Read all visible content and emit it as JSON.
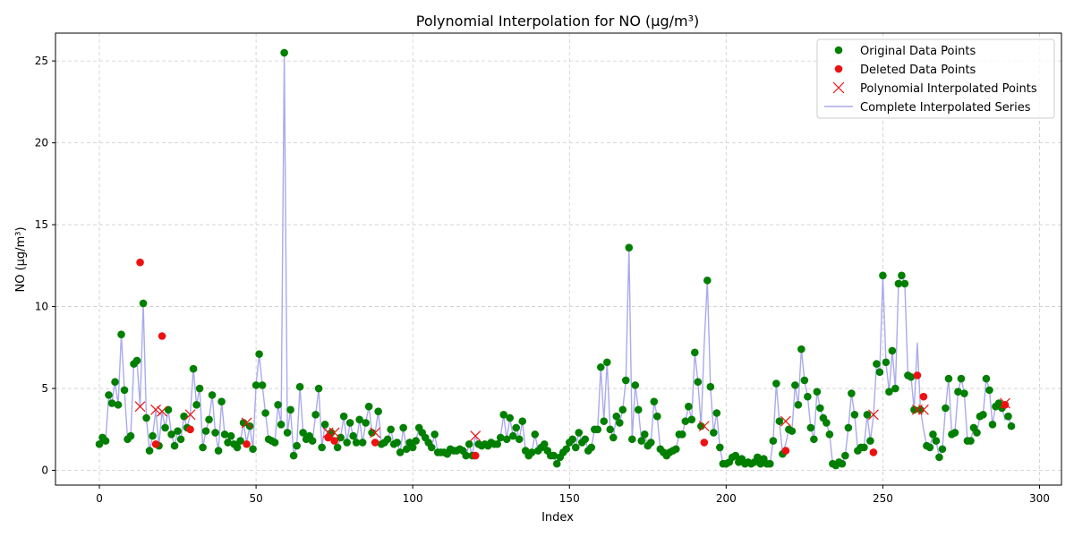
{
  "chart_data": {
    "type": "scatter",
    "title": "Polynomial Interpolation for NO (µg/m³)",
    "xlabel": "Index",
    "ylabel": "NO (µg/m³)",
    "xlim": [
      -14,
      307
    ],
    "ylim": [
      -0.9,
      26.7
    ],
    "xticks": [
      0,
      50,
      100,
      150,
      200,
      250,
      300
    ],
    "yticks": [
      0,
      5,
      10,
      15,
      20,
      25
    ],
    "grid": true,
    "legend_position": "top-right",
    "legend": [
      {
        "label": "Original Data Points",
        "marker": "dot",
        "color": "#007f00"
      },
      {
        "label": "Deleted Data Points",
        "marker": "dot",
        "color": "#ee1111"
      },
      {
        "label": "Polynomial Interpolated Points",
        "marker": "x",
        "color": "#ee1111"
      },
      {
        "label": "Complete Interpolated Series",
        "marker": "line",
        "color": "#aaaaee"
      }
    ],
    "series": [
      {
        "name": "Complete Interpolated Series",
        "y": [
          1.6,
          2.0,
          1.8,
          4.6,
          4.1,
          5.4,
          4.0,
          8.3,
          4.9,
          1.9,
          2.1,
          6.5,
          6.7,
          3.9,
          10.2,
          3.2,
          1.2,
          2.1,
          3.7,
          1.5,
          3.6,
          2.6,
          3.7,
          2.2,
          1.5,
          2.4,
          1.9,
          3.3,
          2.6,
          3.4,
          6.2,
          4.0,
          5.0,
          1.4,
          2.4,
          3.1,
          4.6,
          2.3,
          1.2,
          4.2,
          2.2,
          1.7,
          2.1,
          1.6,
          1.4,
          1.8,
          2.9,
          1.7,
          2.7,
          1.3,
          5.2,
          7.1,
          5.2,
          3.5,
          1.9,
          1.8,
          1.7,
          4.0,
          2.8,
          25.5,
          2.3,
          3.7,
          0.9,
          1.5,
          5.1,
          2.3,
          1.9,
          2.1,
          1.8,
          3.4,
          5.0,
          1.4,
          2.8,
          2.1,
          2.3,
          1.8,
          1.4,
          2.0,
          3.3,
          1.7,
          2.9,
          2.1,
          1.7,
          3.1,
          1.7,
          2.9,
          3.9,
          2.3,
          2.3,
          3.6,
          1.6,
          1.7,
          1.9,
          2.5,
          1.6,
          1.7,
          1.1,
          2.6,
          1.3,
          1.7,
          1.4,
          1.8,
          2.6,
          2.3,
          2.0,
          1.7,
          1.4,
          2.2,
          1.1,
          1.1,
          1.1,
          1.0,
          1.3,
          1.2,
          1.2,
          1.3,
          1.2,
          0.9,
          1.6,
          0.9,
          2.1,
          1.6,
          1.5,
          1.6,
          1.5,
          1.7,
          1.6,
          1.6,
          2.0,
          3.4,
          1.9,
          3.2,
          2.1,
          2.6,
          1.9,
          3.0,
          1.2,
          0.9,
          1.1,
          2.2,
          1.2,
          1.4,
          1.6,
          1.2,
          0.9,
          0.9,
          0.4,
          0.8,
          1.1,
          1.3,
          1.7,
          1.9,
          1.4,
          2.3,
          1.7,
          1.9,
          1.2,
          1.4,
          2.5,
          2.5,
          6.3,
          3.0,
          6.6,
          2.5,
          2.0,
          3.3,
          2.9,
          3.7,
          5.5,
          13.6,
          1.9,
          5.2,
          3.7,
          1.8,
          2.2,
          1.5,
          1.7,
          4.2,
          3.3,
          1.3,
          1.1,
          0.9,
          1.1,
          1.2,
          1.3,
          2.2,
          2.2,
          3.0,
          3.9,
          3.1,
          7.2,
          5.4,
          2.7,
          7.7,
          11.6,
          5.1,
          2.3,
          3.5,
          1.4,
          0.4,
          0.4,
          0.5,
          0.8,
          0.9,
          0.5,
          0.7,
          0.4,
          0.5,
          0.4,
          0.5,
          0.8,
          0.4,
          0.7,
          0.4,
          0.4,
          1.8,
          5.3,
          3.0,
          1.0,
          1.6,
          2.5,
          2.4,
          5.2,
          4.0,
          7.4,
          5.5,
          4.5,
          2.6,
          1.9,
          4.8,
          3.8,
          3.2,
          2.9,
          2.2,
          0.4,
          0.3,
          0.5,
          0.4,
          0.9,
          2.6,
          4.7,
          3.4,
          1.2,
          1.4,
          1.4,
          3.4,
          1.8,
          3.3,
          6.5,
          6.0,
          11.9,
          6.6,
          4.8,
          7.3,
          5.0,
          11.4,
          11.9,
          11.4,
          5.8,
          5.7,
          3.7,
          7.8,
          3.7,
          2.5,
          1.5,
          1.4,
          2.2,
          1.8,
          0.8,
          1.3,
          3.8,
          5.6,
          2.2,
          2.3,
          4.8,
          5.6,
          4.7,
          1.8,
          1.8,
          2.6,
          2.3,
          3.3,
          3.4,
          5.6,
          4.9,
          2.8,
          3.9,
          4.1,
          3.8,
          3.1,
          3.3,
          2.7
        ]
      },
      {
        "name": "Polynomial Interpolated Points",
        "points": [
          [
            13,
            3.9
          ],
          [
            18,
            3.7
          ],
          [
            20,
            3.6
          ],
          [
            29,
            3.4
          ],
          [
            47,
            2.9
          ],
          [
            73,
            2.3
          ],
          [
            75,
            2.3
          ],
          [
            88,
            2.3
          ],
          [
            120,
            2.1
          ],
          [
            193,
            2.7
          ],
          [
            219,
            3.0
          ],
          [
            247,
            3.4
          ],
          [
            261,
            3.7
          ],
          [
            263,
            3.7
          ],
          [
            289,
            4.1
          ]
        ]
      },
      {
        "name": "Deleted Data Points",
        "points": [
          [
            13,
            12.7
          ],
          [
            18,
            1.6
          ],
          [
            20,
            8.2
          ],
          [
            29,
            2.5
          ],
          [
            47,
            1.6
          ],
          [
            73,
            2.0
          ],
          [
            75,
            1.8
          ],
          [
            88,
            1.7
          ],
          [
            120,
            0.9
          ],
          [
            193,
            1.7
          ],
          [
            219,
            1.2
          ],
          [
            247,
            1.1
          ],
          [
            261,
            5.8
          ],
          [
            263,
            4.5
          ],
          [
            289,
            4.0
          ]
        ]
      }
    ]
  }
}
